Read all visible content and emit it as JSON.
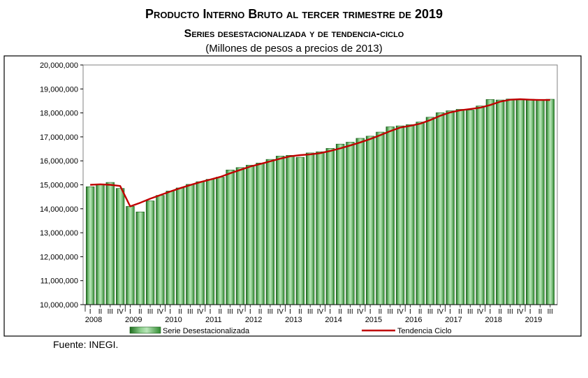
{
  "chart_data": {
    "type": "bar",
    "title": "Producto Interno Bruto al tercer trimestre de 2019",
    "subtitle": "Series desestacionalizada y de tendencia-ciclo",
    "units_note": "(Millones de pesos a precios de 2013)",
    "ylim": [
      10000000,
      20000000
    ],
    "y_ticks": [
      "10,000,000",
      "11,000,000",
      "12,000,000",
      "13,000,000",
      "14,000,000",
      "15,000,000",
      "16,000,000",
      "17,000,000",
      "18,000,000",
      "19,000,000",
      "20,000,000"
    ],
    "quarter_labels": [
      "I",
      "II",
      "III",
      "IV"
    ],
    "years": [
      "2008",
      "2009",
      "2010",
      "2011",
      "2012",
      "2013",
      "2014",
      "2015",
      "2016",
      "2017",
      "2018",
      "2019"
    ],
    "categories": [
      "2008-I",
      "2008-II",
      "2008-III",
      "2008-IV",
      "2009-I",
      "2009-II",
      "2009-III",
      "2009-IV",
      "2010-I",
      "2010-II",
      "2010-III",
      "2010-IV",
      "2011-I",
      "2011-II",
      "2011-III",
      "2011-IV",
      "2012-I",
      "2012-II",
      "2012-III",
      "2012-IV",
      "2013-I",
      "2013-II",
      "2013-III",
      "2013-IV",
      "2014-I",
      "2014-II",
      "2014-III",
      "2014-IV",
      "2015-I",
      "2015-II",
      "2015-III",
      "2015-IV",
      "2016-I",
      "2016-II",
      "2016-III",
      "2016-IV",
      "2017-I",
      "2017-II",
      "2017-III",
      "2017-IV",
      "2018-I",
      "2018-II",
      "2018-III",
      "2018-IV",
      "2019-I",
      "2019-II",
      "2019-III"
    ],
    "series": [
      {
        "name": "Serie Desestacionalizada",
        "type": "bar",
        "color": "#2e8b2e",
        "values": [
          14920000,
          15000000,
          15100000,
          14850000,
          14100000,
          13870000,
          14330000,
          14560000,
          14740000,
          14870000,
          15020000,
          15130000,
          15230000,
          15320000,
          15620000,
          15720000,
          15820000,
          15910000,
          16060000,
          16200000,
          16230000,
          16150000,
          16330000,
          16380000,
          16520000,
          16700000,
          16780000,
          16940000,
          17030000,
          17200000,
          17420000,
          17460000,
          17510000,
          17620000,
          17820000,
          18010000,
          18090000,
          18150000,
          18120000,
          18290000,
          18560000,
          18540000,
          18580000,
          18590000,
          18570000,
          18560000,
          18570000
        ]
      },
      {
        "name": "Tendencia Ciclo",
        "type": "line",
        "color": "#c00000",
        "values": [
          15000000,
          15020000,
          15000000,
          14950000,
          14100000,
          14250000,
          14420000,
          14570000,
          14720000,
          14860000,
          14990000,
          15110000,
          15220000,
          15330000,
          15480000,
          15620000,
          15760000,
          15870000,
          15980000,
          16090000,
          16190000,
          16240000,
          16270000,
          16320000,
          16410000,
          16520000,
          16640000,
          16770000,
          16910000,
          17070000,
          17240000,
          17390000,
          17460000,
          17550000,
          17700000,
          17880000,
          18020000,
          18110000,
          18160000,
          18220000,
          18330000,
          18470000,
          18550000,
          18570000,
          18550000,
          18540000,
          18540000
        ]
      }
    ],
    "legend_position": "bottom",
    "grid": false
  },
  "source_note": "Fuente: INEGI."
}
